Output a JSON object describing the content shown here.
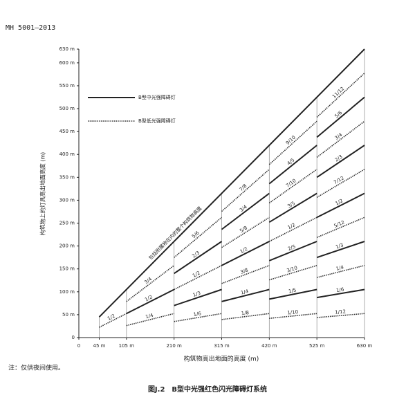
{
  "header": "MH 5001—2013",
  "note": "注：仅供夜间使用。",
  "caption": "图J.2　B型中光强红色闪光障碍灯系统",
  "chart_data": {
    "type": "line",
    "x_label": "构筑物高出地面的高度 (m)",
    "y_label": "构筑物上的灯具高出地面高度 (m)",
    "xlim": [
      0,
      630
    ],
    "ylim": [
      0,
      630
    ],
    "xticks": [
      0,
      {
        "value": 45,
        "label": "45 m"
      },
      {
        "value": 105,
        "label": "105 m"
      },
      {
        "value": 210,
        "label": "210 m"
      },
      {
        "value": 315,
        "label": "315 m"
      },
      {
        "value": 420,
        "label": "420 m"
      },
      {
        "value": 525,
        "label": "525 m"
      },
      {
        "value": 630,
        "label": "630 m"
      }
    ],
    "yticks": [
      0,
      {
        "value": 50,
        "label": "50 m"
      },
      {
        "value": 100,
        "label": "100 m"
      },
      {
        "value": 150,
        "label": "150 m"
      },
      {
        "value": 200,
        "label": "200 m"
      },
      {
        "value": 250,
        "label": "250 m"
      },
      {
        "value": 300,
        "label": "300 m"
      },
      {
        "value": 350,
        "label": "350 m"
      },
      {
        "value": 400,
        "label": "400 m"
      },
      {
        "value": 450,
        "label": "450 m"
      },
      {
        "value": 500,
        "label": "500 m"
      },
      {
        "value": 550,
        "label": "550 m"
      },
      {
        "value": 600,
        "label": "600 m"
      },
      {
        "value": 630,
        "label": "630 m"
      }
    ],
    "boundary": {
      "label": "包括附属物在内的整个构筑物高度",
      "x": [
        45,
        630
      ],
      "y": [
        45,
        630
      ],
      "color": "#222"
    },
    "series": [
      {
        "name": "B型中光强障碍灯",
        "color": "#222",
        "style": "solid",
        "segments": [
          {
            "label": "1/2",
            "x": [
              105,
              210
            ],
            "y": [
              52.5,
              105
            ]
          },
          {
            "label": "1/3",
            "x": [
              210,
              315
            ],
            "y": [
              70,
              105
            ]
          },
          {
            "label": "2/3",
            "x": [
              210,
              315
            ],
            "y": [
              140,
              210
            ]
          },
          {
            "label": "1/4",
            "x": [
              315,
              420
            ],
            "y": [
              78.75,
              105
            ]
          },
          {
            "label": "1/2",
            "x": [
              315,
              420
            ],
            "y": [
              157.5,
              210
            ]
          },
          {
            "label": "3/4",
            "x": [
              315,
              420
            ],
            "y": [
              236.25,
              315
            ]
          },
          {
            "label": "1/5",
            "x": [
              420,
              525
            ],
            "y": [
              84,
              105
            ]
          },
          {
            "label": "2/5",
            "x": [
              420,
              525
            ],
            "y": [
              168,
              210
            ]
          },
          {
            "label": "3/5",
            "x": [
              420,
              525
            ],
            "y": [
              252,
              315
            ]
          },
          {
            "label": "4/5",
            "x": [
              420,
              525
            ],
            "y": [
              336,
              420
            ]
          },
          {
            "label": "1/6",
            "x": [
              525,
              630
            ],
            "y": [
              87.5,
              105
            ]
          },
          {
            "label": "1/3",
            "x": [
              525,
              630
            ],
            "y": [
              175,
              210
            ]
          },
          {
            "label": "1/2",
            "x": [
              525,
              630
            ],
            "y": [
              262.5,
              315
            ]
          },
          {
            "label": "2/3",
            "x": [
              525,
              630
            ],
            "y": [
              350,
              420
            ]
          },
          {
            "label": "5/6",
            "x": [
              525,
              630
            ],
            "y": [
              437.5,
              525
            ]
          }
        ]
      },
      {
        "name": "B型低光强障碍灯",
        "color": "#333",
        "style": "dotted",
        "segments": [
          {
            "label": "1/2",
            "x": [
              45,
              105
            ],
            "y": [
              22.5,
              52.5
            ]
          },
          {
            "label": "1/4",
            "x": [
              105,
              210
            ],
            "y": [
              26.25,
              52.5
            ]
          },
          {
            "label": "3/4",
            "x": [
              105,
              210
            ],
            "y": [
              78.75,
              157.5
            ]
          },
          {
            "label": "1/6",
            "x": [
              210,
              315
            ],
            "y": [
              35,
              52.5
            ]
          },
          {
            "label": "1/2",
            "x": [
              210,
              315
            ],
            "y": [
              105,
              157.5
            ]
          },
          {
            "label": "5/6",
            "x": [
              210,
              315
            ],
            "y": [
              175,
              262.5
            ]
          },
          {
            "label": "1/8",
            "x": [
              315,
              420
            ],
            "y": [
              39.375,
              52.5
            ]
          },
          {
            "label": "3/8",
            "x": [
              315,
              420
            ],
            "y": [
              118.125,
              157.5
            ]
          },
          {
            "label": "5/8",
            "x": [
              315,
              420
            ],
            "y": [
              196.875,
              262.5
            ]
          },
          {
            "label": "7/8",
            "x": [
              315,
              420
            ],
            "y": [
              275.625,
              367.5
            ]
          },
          {
            "label": "1/10",
            "x": [
              420,
              525
            ],
            "y": [
              42,
              52.5
            ]
          },
          {
            "label": "3/10",
            "x": [
              420,
              525
            ],
            "y": [
              126,
              157.5
            ]
          },
          {
            "label": "1/2",
            "x": [
              420,
              525
            ],
            "y": [
              210,
              262.5
            ]
          },
          {
            "label": "7/10",
            "x": [
              420,
              525
            ],
            "y": [
              294,
              367.5
            ]
          },
          {
            "label": "9/10",
            "x": [
              420,
              525
            ],
            "y": [
              378,
              472.5
            ]
          },
          {
            "label": "1/12",
            "x": [
              525,
              630
            ],
            "y": [
              43.75,
              52.5
            ]
          },
          {
            "label": "1/4",
            "x": [
              525,
              630
            ],
            "y": [
              131.25,
              157.5
            ]
          },
          {
            "label": "5/12",
            "x": [
              525,
              630
            ],
            "y": [
              218.75,
              262.5
            ]
          },
          {
            "label": "7/12",
            "x": [
              525,
              630
            ],
            "y": [
              306.25,
              367.5
            ]
          },
          {
            "label": "3/4",
            "x": [
              525,
              630
            ],
            "y": [
              393.75,
              472.5
            ]
          },
          {
            "label": "11/12",
            "x": [
              525,
              630
            ],
            "y": [
              481.25,
              577.5
            ]
          }
        ]
      }
    ]
  }
}
